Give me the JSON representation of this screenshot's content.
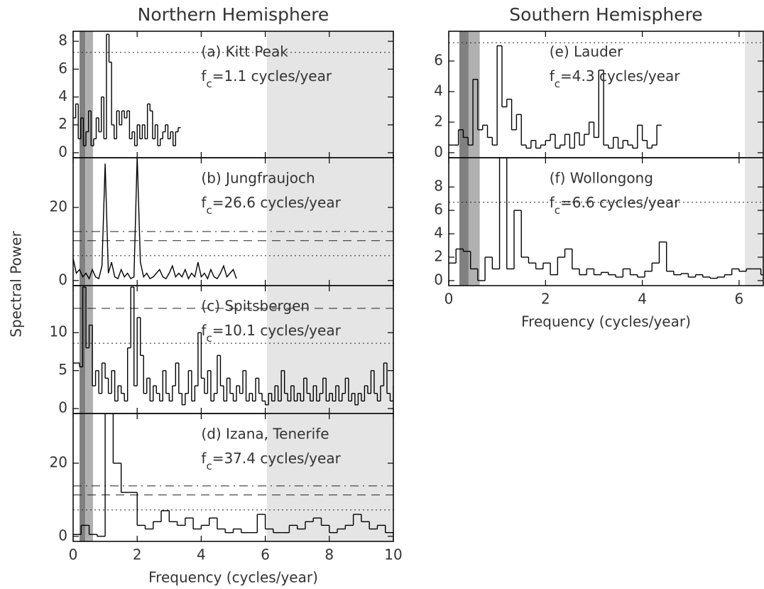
{
  "shared": {
    "ylabel": "Spectral Power"
  },
  "chart_data": [
    {
      "type": "step",
      "title": "Northern Hemisphere",
      "label": "(a) Kitt Peak",
      "fc": {
        "f": "f",
        "sub": "c",
        "rest": "=1.1 cycles/year"
      },
      "color": "#000000",
      "xlim": [
        0,
        10
      ],
      "xticks": [
        0,
        2,
        4,
        6,
        8,
        10
      ],
      "xtick_labels": false,
      "ylim": [
        -0.36,
        8.72
      ],
      "yticks": [
        0,
        2,
        4,
        6,
        8
      ],
      "bands": [
        {
          "from": 0.2,
          "to": 0.38,
          "color": "#808080"
        },
        {
          "from": 0.38,
          "to": 0.62,
          "color": "#b0b0b0"
        },
        {
          "from": 6.05,
          "to": 10,
          "color": "#e5e5e5"
        }
      ],
      "levels": [
        {
          "value": 7.2,
          "style": "dotted"
        }
      ],
      "x": [
        0,
        0.08,
        0.16,
        0.24,
        0.32,
        0.4,
        0.48,
        0.56,
        0.64,
        0.72,
        0.8,
        0.88,
        0.96,
        1.04,
        1.12,
        1.2,
        1.28,
        1.36,
        1.44,
        1.52,
        1.6,
        1.68,
        1.76,
        1.84,
        1.92,
        2,
        2.08,
        2.16,
        2.24,
        2.32,
        2.4,
        2.48,
        2.56,
        2.64,
        2.72,
        2.8,
        2.88,
        2.96,
        3.04,
        3.12,
        3.2,
        3.28
      ],
      "values": [
        2.5,
        3.5,
        1,
        2.5,
        0.5,
        1.5,
        3,
        0.5,
        1,
        2.5,
        1.5,
        4,
        1,
        8.5,
        6.5,
        2,
        1,
        3,
        2,
        3,
        2.5,
        3,
        1,
        1.5,
        0.5,
        2,
        1,
        2,
        1,
        3.5,
        3,
        1,
        2,
        0.5,
        1,
        1.5,
        2,
        1,
        1.5,
        0.5,
        1.5,
        1.8
      ]
    },
    {
      "type": "line",
      "label": "(b) Jungfraujoch",
      "fc": {
        "f": "f",
        "sub": "c",
        "rest": "=26.6 cycles/year"
      },
      "color": "#000000",
      "xlim": [
        0,
        10
      ],
      "xticks": [
        0,
        2,
        4,
        6,
        8,
        10
      ],
      "xtick_labels": false,
      "ylim": [
        -1.4,
        33.6
      ],
      "yticks": [
        0,
        20
      ],
      "bands": [
        {
          "from": 0.2,
          "to": 0.38,
          "color": "#808080"
        },
        {
          "from": 0.38,
          "to": 0.62,
          "color": "#b0b0b0"
        },
        {
          "from": 6.05,
          "to": 10,
          "color": "#e5e5e5"
        }
      ],
      "levels": [
        {
          "value": 6.8,
          "style": "dotted"
        },
        {
          "value": 10.9,
          "style": "dashed"
        },
        {
          "value": 13.4,
          "style": "dashdot"
        }
      ],
      "x": [
        0,
        0.1,
        0.2,
        0.3,
        0.4,
        0.5,
        0.6,
        0.7,
        0.8,
        0.9,
        1,
        1.1,
        1.2,
        1.3,
        1.4,
        1.5,
        1.6,
        1.7,
        1.8,
        1.9,
        2,
        2.1,
        2.2,
        2.3,
        2.4,
        2.5,
        2.6,
        2.7,
        2.8,
        2.9,
        3,
        3.1,
        3.2,
        3.3,
        3.4,
        3.5,
        3.6,
        3.7,
        3.8,
        3.9,
        4,
        4.1,
        4.2,
        4.3,
        4.4,
        4.5,
        4.6,
        4.7,
        4.8,
        4.9,
        5,
        5.1
      ],
      "values": [
        6,
        2,
        3,
        1,
        2,
        0.5,
        3,
        1,
        0.5,
        4,
        32,
        2,
        5,
        1,
        0.5,
        3,
        1,
        2,
        0.5,
        1,
        34,
        5,
        1,
        2,
        0.5,
        1,
        2,
        3,
        1,
        0.5,
        2,
        4,
        1,
        2,
        1,
        3,
        0.5,
        2,
        1,
        5,
        1,
        2,
        0.5,
        3,
        1,
        0.5,
        2,
        4,
        1,
        2,
        3,
        0.5
      ]
    },
    {
      "type": "step",
      "label": "(c) Spitsbergen",
      "fc": {
        "f": "f",
        "sub": "c",
        "rest": "=10.1 cycles/year"
      },
      "color": "#000000",
      "xlim": [
        0,
        10
      ],
      "xticks": [
        0,
        2,
        4,
        6,
        8,
        10
      ],
      "xtick_labels": false,
      "ylim": [
        -0.65,
        16.2
      ],
      "yticks": [
        0,
        5,
        10
      ],
      "bands": [
        {
          "from": 0.2,
          "to": 0.38,
          "color": "#808080"
        },
        {
          "from": 0.38,
          "to": 0.62,
          "color": "#b0b0b0"
        },
        {
          "from": 6.05,
          "to": 10,
          "color": "#e5e5e5"
        }
      ],
      "levels": [
        {
          "value": 8.6,
          "style": "dotted"
        },
        {
          "value": 13.2,
          "style": "dashed"
        }
      ],
      "x": [
        0,
        0.1,
        0.2,
        0.3,
        0.4,
        0.5,
        0.6,
        0.7,
        0.8,
        0.9,
        1,
        1.1,
        1.2,
        1.3,
        1.4,
        1.5,
        1.6,
        1.7,
        1.8,
        1.9,
        2,
        2.1,
        2.2,
        2.3,
        2.4,
        2.5,
        2.6,
        2.7,
        2.8,
        2.9,
        3,
        3.1,
        3.2,
        3.3,
        3.4,
        3.5,
        3.6,
        3.7,
        3.8,
        3.9,
        4,
        4.1,
        4.2,
        4.3,
        4.4,
        4.5,
        4.6,
        4.7,
        4.8,
        4.9,
        5,
        5.1,
        5.2,
        5.3,
        5.4,
        5.5,
        5.6,
        5.7,
        5.8,
        5.9,
        6,
        6.1,
        6.2,
        6.3,
        6.4,
        6.5,
        6.6,
        6.7,
        6.8,
        6.9,
        7,
        7.1,
        7.2,
        7.3,
        7.4,
        7.5,
        7.6,
        7.7,
        7.8,
        7.9,
        8,
        8.1,
        8.2,
        8.3,
        8.4,
        8.5,
        8.6,
        8.7,
        8.8,
        8.9,
        9,
        9.1,
        9.2,
        9.3,
        9.4,
        9.5,
        9.6,
        9.7,
        9.8,
        9.9,
        10
      ],
      "values": [
        6,
        6,
        5.5,
        16,
        8,
        11,
        3,
        5,
        2,
        6,
        4,
        2,
        5,
        1,
        3,
        2,
        1,
        8,
        16,
        3,
        12,
        7,
        2,
        4,
        1,
        3,
        2,
        1,
        5,
        2,
        1,
        3,
        6,
        2,
        0.5,
        2,
        5,
        1,
        3,
        10,
        4,
        2,
        5,
        1,
        2,
        7,
        3,
        1,
        4,
        2,
        1,
        3,
        2,
        5,
        1,
        2,
        1,
        4,
        2,
        1,
        0.5,
        2,
        1,
        3,
        1,
        5,
        2,
        1,
        3,
        1,
        2,
        1,
        4,
        2,
        1,
        3,
        1,
        2,
        4,
        1,
        2,
        1,
        3,
        1,
        2,
        4,
        1,
        2,
        0.5,
        2,
        1,
        3,
        2,
        5,
        2,
        1,
        3,
        6,
        2,
        1,
        3
      ]
    },
    {
      "type": "step",
      "label": "(d) Izana, Tenerife",
      "fc": {
        "f": "f",
        "sub": "c",
        "rest": "=37.4 cycles/year"
      },
      "color": "#000000",
      "xlim": [
        0,
        10
      ],
      "xticks": [
        0,
        2,
        4,
        6,
        8,
        10
      ],
      "xtick_labels": true,
      "xlabel": "Frequency (cycles/year)",
      "ylim": [
        -1.4,
        33.6
      ],
      "yticks": [
        0,
        20
      ],
      "bands": [
        {
          "from": 0.2,
          "to": 0.38,
          "color": "#808080"
        },
        {
          "from": 0.38,
          "to": 0.62,
          "color": "#b0b0b0"
        },
        {
          "from": 6.05,
          "to": 10,
          "color": "#e5e5e5"
        }
      ],
      "levels": [
        {
          "value": 7.2,
          "style": "dotted"
        },
        {
          "value": 11.3,
          "style": "dashed"
        },
        {
          "value": 13.8,
          "style": "dashdot"
        }
      ],
      "x": [
        0,
        0.25,
        0.5,
        0.75,
        1,
        1.25,
        1.5,
        1.75,
        2,
        2.25,
        2.5,
        2.75,
        3,
        3.25,
        3.5,
        3.75,
        4,
        4.25,
        4.5,
        4.75,
        5,
        5.25,
        5.5,
        5.75,
        6,
        6.25,
        6.5,
        6.75,
        7,
        7.25,
        7.5,
        7.75,
        8,
        8.25,
        8.5,
        8.75,
        9,
        9.25,
        9.5,
        9.75,
        10
      ],
      "values": [
        0.5,
        3,
        0.5,
        0,
        34,
        20,
        12,
        12,
        3,
        2,
        4,
        7,
        4,
        3,
        5,
        2,
        3,
        5,
        2,
        1,
        2,
        1,
        1,
        6,
        2,
        1,
        1,
        3,
        2,
        4,
        5,
        3,
        1,
        2,
        3,
        6,
        4,
        2,
        3,
        1,
        0.5
      ]
    },
    {
      "type": "step",
      "title": "Southern Hemisphere",
      "label": "(e) Lauder",
      "fc": {
        "f": "f",
        "sub": "c",
        "rest": "=4.3 cycles/year"
      },
      "color": "#000000",
      "xlim": [
        0,
        6.5
      ],
      "xticks": [
        0,
        2,
        4,
        6
      ],
      "xtick_labels": false,
      "ylim": [
        -0.33,
        7.95
      ],
      "yticks": [
        0,
        2,
        4,
        6
      ],
      "bands": [
        {
          "from": 0.22,
          "to": 0.41,
          "color": "#808080"
        },
        {
          "from": 0.41,
          "to": 0.64,
          "color": "#b0b0b0"
        },
        {
          "from": 6.12,
          "to": 6.5,
          "color": "#e5e5e5"
        }
      ],
      "levels": [
        {
          "value": 7.2,
          "style": "dotted"
        }
      ],
      "x": [
        0,
        0.1,
        0.2,
        0.3,
        0.4,
        0.5,
        0.6,
        0.7,
        0.8,
        0.9,
        1,
        1.1,
        1.2,
        1.3,
        1.4,
        1.5,
        1.6,
        1.7,
        1.8,
        1.9,
        2,
        2.1,
        2.2,
        2.3,
        2.4,
        2.5,
        2.6,
        2.7,
        2.8,
        2.9,
        3,
        3.1,
        3.2,
        3.3,
        3.4,
        3.5,
        3.6,
        3.7,
        3.8,
        3.9,
        4,
        4.1,
        4.2,
        4.3
      ],
      "values": [
        0.5,
        0.5,
        1.5,
        1,
        0.5,
        4.8,
        1.5,
        1.8,
        1,
        0.5,
        7,
        3,
        3.5,
        1.5,
        2.5,
        0.5,
        0.3,
        0.8,
        0.3,
        0.5,
        0.8,
        1.2,
        0.3,
        0.5,
        1.2,
        0.3,
        1.3,
        0.5,
        1.2,
        2,
        1,
        5.4,
        0.5,
        0.3,
        1,
        0.3,
        0.8,
        0.5,
        0.3,
        1.8,
        0.8,
        0.3,
        0.5,
        1.8
      ]
    },
    {
      "type": "step",
      "label": "(f) Wollongong",
      "fc": {
        "f": "f",
        "sub": "c",
        "rest": "=6.6 cycles/year"
      },
      "color": "#000000",
      "xlim": [
        0,
        6.5
      ],
      "xticks": [
        0,
        2,
        4,
        6
      ],
      "xtick_labels": true,
      "xlabel": "Frequency (cycles/year)",
      "ylim": [
        -0.43,
        10.5
      ],
      "yticks": [
        0,
        2,
        4,
        6,
        8
      ],
      "bands": [
        {
          "from": 0.22,
          "to": 0.41,
          "color": "#808080"
        },
        {
          "from": 0.41,
          "to": 0.64,
          "color": "#b0b0b0"
        },
        {
          "from": 6.12,
          "to": 6.5,
          "color": "#e5e5e5"
        }
      ],
      "levels": [
        {
          "value": 6.7,
          "style": "dotted"
        }
      ],
      "x": [
        0,
        0.15,
        0.3,
        0.45,
        0.6,
        0.75,
        0.9,
        1.05,
        1.2,
        1.35,
        1.5,
        1.65,
        1.8,
        1.95,
        2.1,
        2.25,
        2.4,
        2.55,
        2.7,
        2.85,
        3,
        3.15,
        3.3,
        3.45,
        3.6,
        3.75,
        3.9,
        4.05,
        4.2,
        4.35,
        4.5,
        4.65,
        4.8,
        4.95,
        5.1,
        5.25,
        5.4,
        5.55,
        5.7,
        5.85,
        6,
        6.15,
        6.3,
        6.45
      ],
      "values": [
        1.5,
        2.7,
        2.5,
        1,
        0,
        2,
        1,
        10.5,
        1,
        6,
        2,
        1.5,
        1,
        1.5,
        0.5,
        2,
        2.7,
        1,
        0.5,
        1,
        0.5,
        0.7,
        0.5,
        0.3,
        1,
        0.5,
        0.3,
        0.8,
        1.5,
        3.3,
        0.8,
        0.5,
        0.6,
        0.3,
        0.5,
        0.3,
        0.2,
        0.3,
        0.5,
        1,
        0.8,
        1,
        1,
        0.5
      ]
    }
  ]
}
